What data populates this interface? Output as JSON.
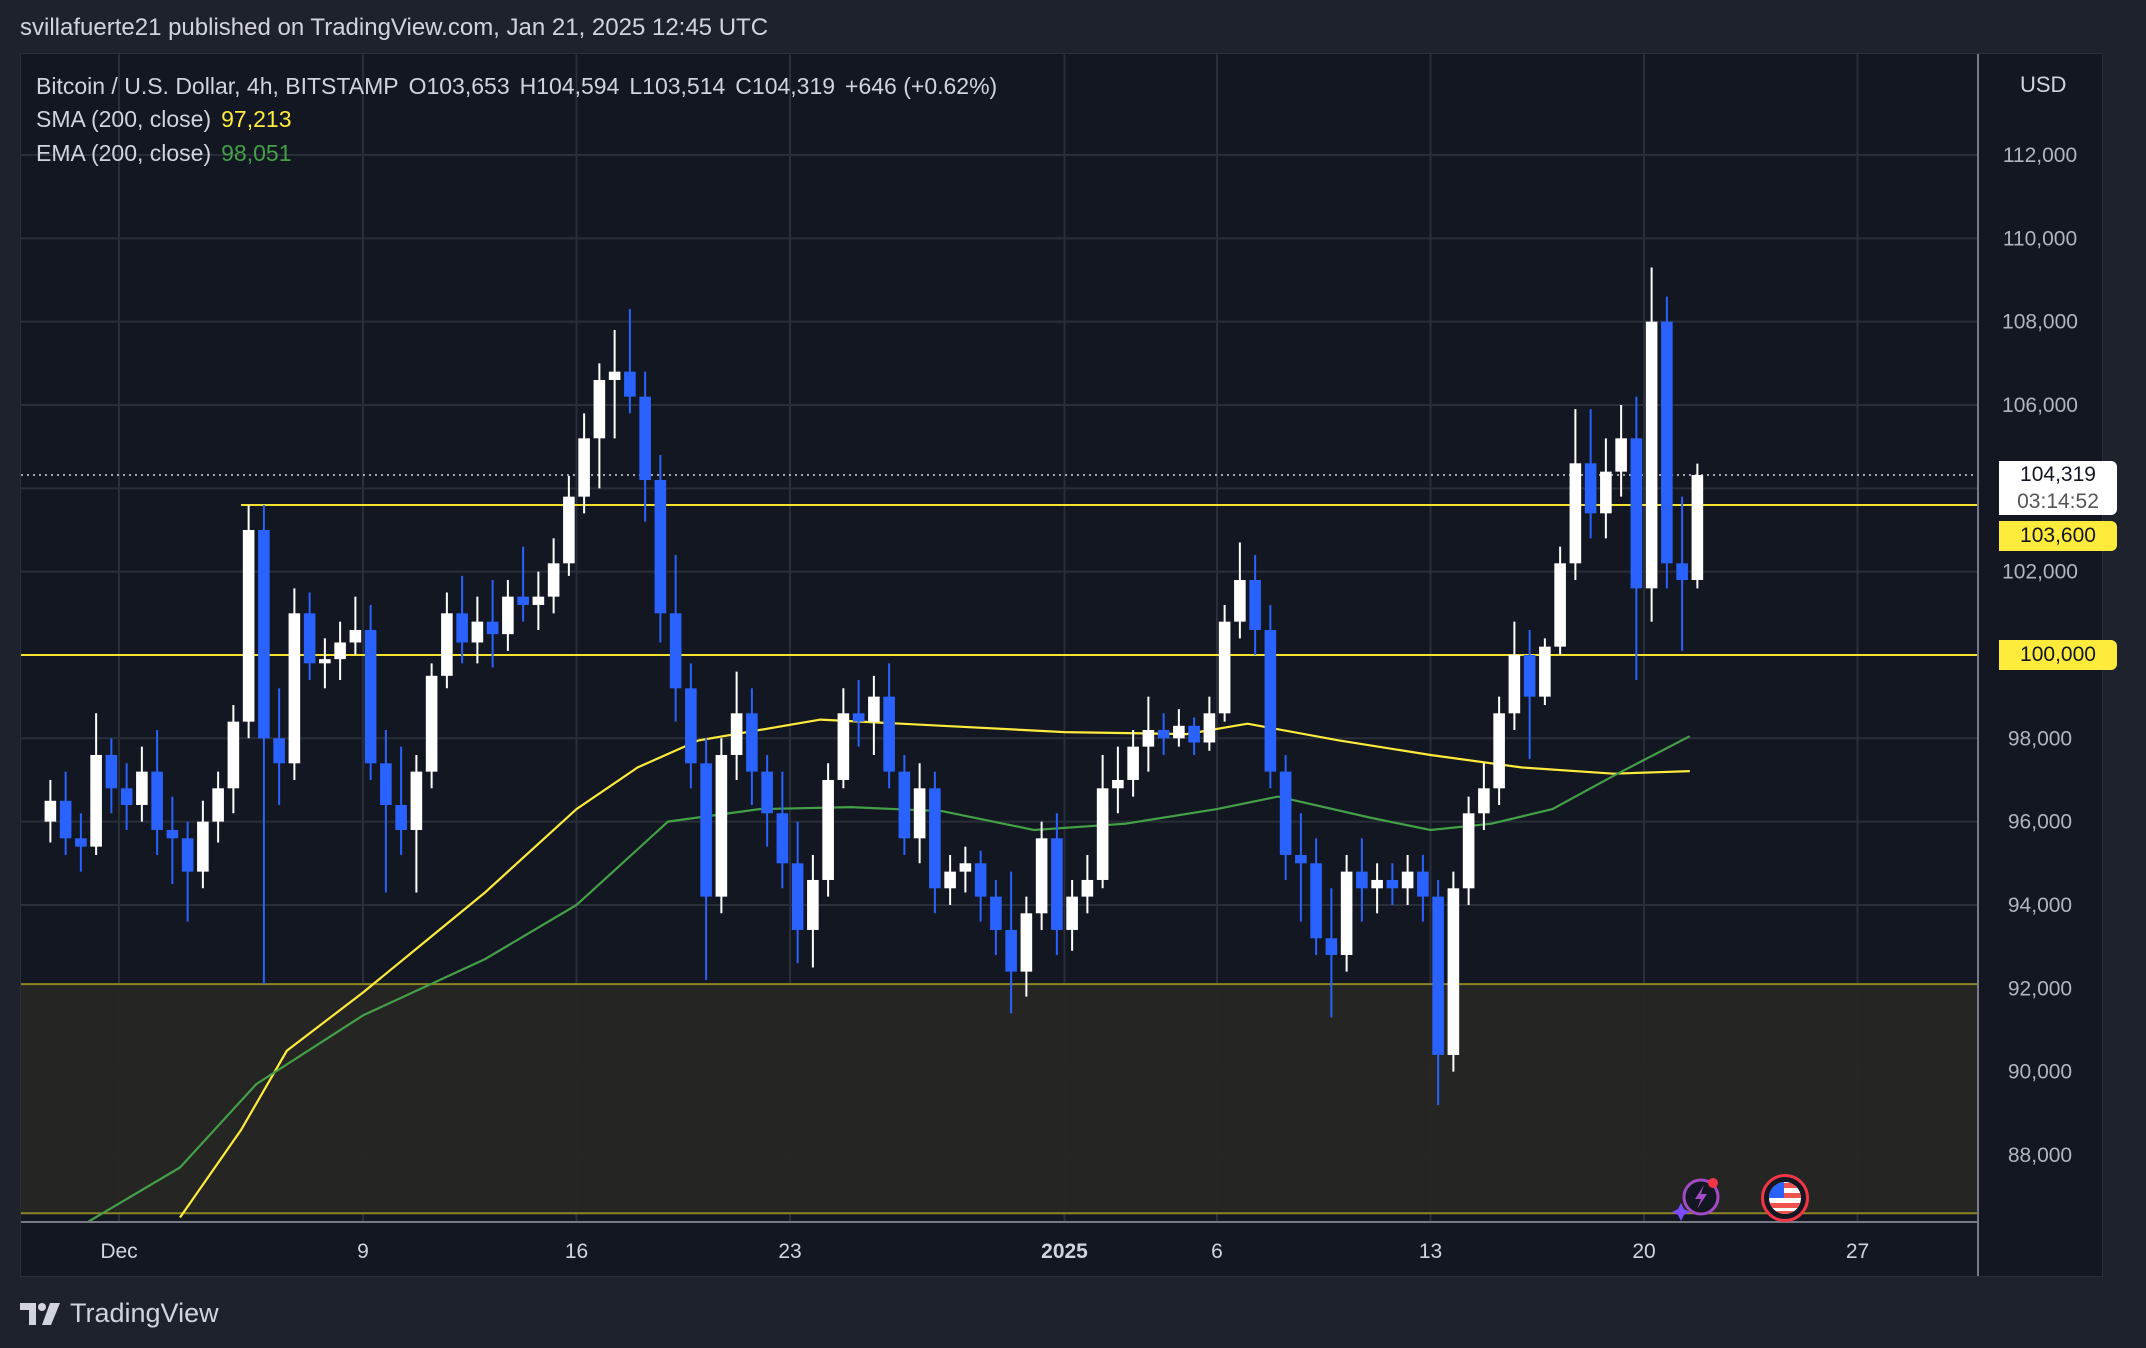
{
  "publish_line": "svillafuerte21 published on TradingView.com, Jan 21, 2025 12:45 UTC",
  "legend": {
    "symbol": "Bitcoin / U.S. Dollar, 4h, BITSTAMP",
    "open": "O103,653",
    "high": "H104,594",
    "low": "L103,514",
    "close": "C104,319",
    "change": "+646 (+0.62%)",
    "sma_label": "SMA (200, close)",
    "sma_value": "97,213",
    "ema_label": "EMA (200, close)",
    "ema_value": "98,051"
  },
  "price_axis": {
    "currency": "USD"
  },
  "tags": {
    "last_price": "104,319",
    "countdown": "03:14:52",
    "level_1": "103,600",
    "level_2": "100,000"
  },
  "footer": {
    "brand": "TradingView"
  },
  "colors": {
    "up": "#ffffff",
    "down": "#2962ff",
    "sma": "#ffeb3b",
    "ema": "#43a047",
    "level": "#f5e12e",
    "zone": "#262624",
    "background": "#131722"
  },
  "icons": [
    "ideas-lightning-icon",
    "us-flag-economic-event-icon"
  ],
  "chart_data": {
    "type": "candlestick",
    "title": "Bitcoin / U.S. Dollar, 4h, BITSTAMP",
    "ylim": [
      86600,
      114000
    ],
    "yticks": [
      88000,
      90000,
      92000,
      94000,
      96000,
      98000,
      100000,
      102000,
      104000,
      106000,
      108000,
      110000,
      112000
    ],
    "xticks": [
      {
        "label": "Dec",
        "date": "2024-12-01",
        "bold": false
      },
      {
        "label": "9",
        "date": "2024-12-09",
        "bold": false
      },
      {
        "label": "16",
        "date": "2024-12-16",
        "bold": false
      },
      {
        "label": "23",
        "date": "2024-12-23",
        "bold": false
      },
      {
        "label": "2025",
        "date": "2025-01-01",
        "bold": true
      },
      {
        "label": "6",
        "date": "2025-01-06",
        "bold": false
      },
      {
        "label": "13",
        "date": "2025-01-13",
        "bold": false
      },
      {
        "label": "20",
        "date": "2025-01-20",
        "bold": false
      },
      {
        "label": "27",
        "date": "2025-01-27",
        "bold": false
      }
    ],
    "grid": true,
    "horizontal_levels": [
      {
        "price": 103600,
        "from": "2024-12-05"
      },
      {
        "price": 100000
      },
      {
        "price": 92100
      },
      {
        "price": 86600
      }
    ],
    "zone": {
      "top": 92100,
      "bottom": 86600
    },
    "last_price": 104319,
    "candles_columns": [
      "time",
      "open",
      "high",
      "low",
      "close"
    ],
    "candles": [
      [
        "2024-11-28T12",
        96000,
        97000,
        95500,
        96500
      ],
      [
        "2024-11-29T00",
        96500,
        97200,
        95200,
        95600
      ],
      [
        "2024-11-29T12",
        95600,
        96200,
        94800,
        95400
      ],
      [
        "2024-11-30T00",
        95400,
        98600,
        95200,
        97600
      ],
      [
        "2024-11-30T12",
        97600,
        98000,
        96200,
        96800
      ],
      [
        "2024-12-01T00",
        96800,
        97400,
        95800,
        96400
      ],
      [
        "2024-12-01T12",
        96400,
        97800,
        96000,
        97200
      ],
      [
        "2024-12-02T00",
        97200,
        98200,
        95200,
        95800
      ],
      [
        "2024-12-02T12",
        95800,
        96600,
        94500,
        95600
      ],
      [
        "2024-12-03T00",
        95600,
        96000,
        93600,
        94800
      ],
      [
        "2024-12-03T12",
        94800,
        96500,
        94400,
        96000
      ],
      [
        "2024-12-04T00",
        96000,
        97200,
        95500,
        96800
      ],
      [
        "2024-12-04T12",
        96800,
        98800,
        96200,
        98400
      ],
      [
        "2024-12-05T00",
        98400,
        103600,
        98000,
        103000
      ],
      [
        "2024-12-05T12",
        103000,
        103600,
        92100,
        98000
      ],
      [
        "2024-12-06T00",
        98000,
        99200,
        96400,
        97400
      ],
      [
        "2024-12-06T12",
        97400,
        101600,
        97000,
        101000
      ],
      [
        "2024-12-07T00",
        101000,
        101500,
        99400,
        99800
      ],
      [
        "2024-12-07T12",
        99800,
        100400,
        99200,
        99900
      ],
      [
        "2024-12-08T00",
        99900,
        100800,
        99400,
        100300
      ],
      [
        "2024-12-08T12",
        100300,
        101400,
        100000,
        100600
      ],
      [
        "2024-12-09T00",
        100600,
        101200,
        97000,
        97400
      ],
      [
        "2024-12-09T12",
        97400,
        98200,
        94300,
        96400
      ],
      [
        "2024-12-10T00",
        96400,
        97800,
        95200,
        95800
      ],
      [
        "2024-12-10T12",
        95800,
        97600,
        94300,
        97200
      ],
      [
        "2024-12-11T00",
        97200,
        99800,
        96800,
        99500
      ],
      [
        "2024-12-11T12",
        99500,
        101500,
        99200,
        101000
      ],
      [
        "2024-12-12T00",
        101000,
        101900,
        99800,
        100300
      ],
      [
        "2024-12-12T12",
        100300,
        101400,
        99800,
        100800
      ],
      [
        "2024-12-13T00",
        100800,
        101800,
        99700,
        100500
      ],
      [
        "2024-12-13T12",
        100500,
        101800,
        100100,
        101400
      ],
      [
        "2024-12-14T00",
        101400,
        102600,
        100800,
        101200
      ],
      [
        "2024-12-14T12",
        101200,
        102000,
        100600,
        101400
      ],
      [
        "2024-12-15T00",
        101400,
        102800,
        101000,
        102200
      ],
      [
        "2024-12-15T12",
        102200,
        104300,
        101900,
        103800
      ],
      [
        "2024-12-16T00",
        103800,
        105800,
        103400,
        105200
      ],
      [
        "2024-12-16T12",
        105200,
        107000,
        104000,
        106600
      ],
      [
        "2024-12-17T00",
        106600,
        107800,
        105200,
        106800
      ],
      [
        "2024-12-17T12",
        106800,
        108300,
        105800,
        106200
      ],
      [
        "2024-12-18T00",
        106200,
        106800,
        103200,
        104200
      ],
      [
        "2024-12-18T12",
        104200,
        104800,
        100300,
        101000
      ],
      [
        "2024-12-19T00",
        101000,
        102400,
        98400,
        99200
      ],
      [
        "2024-12-19T12",
        99200,
        99800,
        96800,
        97400
      ],
      [
        "2024-12-20T00",
        97400,
        98000,
        92200,
        94200
      ],
      [
        "2024-12-20T12",
        94200,
        98000,
        93800,
        97600
      ],
      [
        "2024-12-21T00",
        97600,
        99600,
        97000,
        98600
      ],
      [
        "2024-12-21T12",
        98600,
        99200,
        96400,
        97200
      ],
      [
        "2024-12-22T00",
        97200,
        97600,
        95400,
        96200
      ],
      [
        "2024-12-22T12",
        96200,
        97200,
        94400,
        95000
      ],
      [
        "2024-12-23T00",
        95000,
        96000,
        92600,
        93400
      ],
      [
        "2024-12-23T12",
        93400,
        95200,
        92500,
        94600
      ],
      [
        "2024-12-24T00",
        94600,
        97400,
        94200,
        97000
      ],
      [
        "2024-12-24T12",
        97000,
        99200,
        96800,
        98600
      ],
      [
        "2024-12-25T00",
        98600,
        99400,
        97800,
        98400
      ],
      [
        "2024-12-25T12",
        98400,
        99500,
        97600,
        99000
      ],
      [
        "2024-12-26T00",
        99000,
        99800,
        96800,
        97200
      ],
      [
        "2024-12-26T12",
        97200,
        97600,
        95200,
        95600
      ],
      [
        "2024-12-27T00",
        95600,
        97400,
        95000,
        96800
      ],
      [
        "2024-12-27T12",
        96800,
        97200,
        93800,
        94400
      ],
      [
        "2024-12-28T00",
        94400,
        95200,
        94000,
        94800
      ],
      [
        "2024-12-28T12",
        94800,
        95400,
        94300,
        95000
      ],
      [
        "2024-12-29T00",
        95000,
        95300,
        93600,
        94200
      ],
      [
        "2024-12-29T12",
        94200,
        94600,
        92800,
        93400
      ],
      [
        "2024-12-30T00",
        93400,
        94800,
        91400,
        92400
      ],
      [
        "2024-12-30T12",
        92400,
        94200,
        91800,
        93800
      ],
      [
        "2024-12-31T00",
        93800,
        96000,
        93400,
        95600
      ],
      [
        "2024-12-31T12",
        95600,
        96200,
        92800,
        93400
      ],
      [
        "2025-01-01T00",
        93400,
        94600,
        92900,
        94200
      ],
      [
        "2025-01-01T12",
        94200,
        95200,
        93800,
        94600
      ],
      [
        "2025-01-02T00",
        94600,
        97600,
        94400,
        96800
      ],
      [
        "2025-01-02T12",
        96800,
        97800,
        96200,
        97000
      ],
      [
        "2025-01-03T00",
        97000,
        98200,
        96600,
        97800
      ],
      [
        "2025-01-03T12",
        97800,
        99000,
        97200,
        98200
      ],
      [
        "2025-01-04T00",
        98200,
        98600,
        97600,
        98000
      ],
      [
        "2025-01-04T12",
        98000,
        98700,
        97800,
        98300
      ],
      [
        "2025-01-05T00",
        98300,
        98500,
        97600,
        97900
      ],
      [
        "2025-01-05T12",
        97900,
        99000,
        97700,
        98600
      ],
      [
        "2025-01-06T00",
        98600,
        101200,
        98400,
        100800
      ],
      [
        "2025-01-06T12",
        100800,
        102700,
        100400,
        101800
      ],
      [
        "2025-01-07T00",
        101800,
        102400,
        100000,
        100600
      ],
      [
        "2025-01-07T12",
        100600,
        101200,
        96800,
        97200
      ],
      [
        "2025-01-08T00",
        97200,
        97600,
        94600,
        95200
      ],
      [
        "2025-01-08T12",
        95200,
        96200,
        93600,
        95000
      ],
      [
        "2025-01-09T00",
        95000,
        95600,
        92800,
        93200
      ],
      [
        "2025-01-09T12",
        93200,
        94400,
        91300,
        92800
      ],
      [
        "2025-01-10T00",
        92800,
        95200,
        92400,
        94800
      ],
      [
        "2025-01-10T12",
        94800,
        95600,
        93600,
        94400
      ],
      [
        "2025-01-11T00",
        94400,
        95000,
        93800,
        94600
      ],
      [
        "2025-01-11T12",
        94600,
        95000,
        94000,
        94400
      ],
      [
        "2025-01-12T00",
        94400,
        95200,
        94000,
        94800
      ],
      [
        "2025-01-12T12",
        94800,
        95200,
        93600,
        94200
      ],
      [
        "2025-01-13T00",
        94200,
        94600,
        89200,
        90400
      ],
      [
        "2025-01-13T12",
        90400,
        94800,
        90000,
        94400
      ],
      [
        "2025-01-14T00",
        94400,
        96600,
        94000,
        96200
      ],
      [
        "2025-01-14T12",
        96200,
        97400,
        95800,
        96800
      ],
      [
        "2025-01-15T00",
        96800,
        99000,
        96400,
        98600
      ],
      [
        "2025-01-15T12",
        98600,
        100800,
        98200,
        100000
      ],
      [
        "2025-01-16T00",
        100000,
        100600,
        97500,
        99000
      ],
      [
        "2025-01-16T12",
        99000,
        100400,
        98800,
        100200
      ],
      [
        "2025-01-17T00",
        100200,
        102600,
        100000,
        102200
      ],
      [
        "2025-01-17T12",
        102200,
        105900,
        101800,
        104600
      ],
      [
        "2025-01-18T00",
        104600,
        105900,
        102800,
        103400
      ],
      [
        "2025-01-18T12",
        103400,
        105200,
        102800,
        104400
      ],
      [
        "2025-01-19T00",
        104400,
        106000,
        103800,
        105200
      ],
      [
        "2025-01-19T12",
        105200,
        106200,
        99400,
        101600
      ],
      [
        "2025-01-20T00",
        101600,
        109300,
        100800,
        108000
      ],
      [
        "2025-01-20T12",
        108000,
        108600,
        101600,
        102200
      ],
      [
        "2025-01-21T00",
        102200,
        103800,
        100100,
        101800
      ],
      [
        "2025-01-21T12",
        101800,
        104594,
        101600,
        104319
      ]
    ],
    "series": [
      {
        "name": "SMA (200, close)",
        "color": "#ffeb3b",
        "points": [
          [
            "2024-12-03T00",
            86500
          ],
          [
            "2024-12-05T00",
            88600
          ],
          [
            "2024-12-06T12",
            90500
          ],
          [
            "2024-12-09T00",
            91900
          ],
          [
            "2024-12-11T00",
            93100
          ],
          [
            "2024-12-13T00",
            94300
          ],
          [
            "2024-12-16T00",
            96300
          ],
          [
            "2024-12-18T00",
            97300
          ],
          [
            "2024-12-20T00",
            97950
          ],
          [
            "2024-12-24T00",
            98450
          ],
          [
            "2024-12-28T00",
            98300
          ],
          [
            "2025-01-01T00",
            98150
          ],
          [
            "2025-01-05T00",
            98100
          ],
          [
            "2025-01-07T00",
            98350
          ],
          [
            "2025-01-10T00",
            97950
          ],
          [
            "2025-01-13T00",
            97600
          ],
          [
            "2025-01-16T00",
            97300
          ],
          [
            "2025-01-19T00",
            97150
          ],
          [
            "2025-01-21T12",
            97213
          ]
        ]
      },
      {
        "name": "EMA (200, close)",
        "color": "#43a047",
        "points": [
          [
            "2024-11-30T00",
            86400
          ],
          [
            "2024-12-03T00",
            87700
          ],
          [
            "2024-12-05T12",
            89700
          ],
          [
            "2024-12-09T00",
            91350
          ],
          [
            "2024-12-13T00",
            92700
          ],
          [
            "2024-12-16T00",
            94000
          ],
          [
            "2024-12-19T00",
            96000
          ],
          [
            "2024-12-22T00",
            96300
          ],
          [
            "2024-12-25T00",
            96350
          ],
          [
            "2024-12-28T00",
            96250
          ],
          [
            "2024-12-31T00",
            95800
          ],
          [
            "2025-01-03T00",
            95950
          ],
          [
            "2025-01-06T00",
            96300
          ],
          [
            "2025-01-08T00",
            96600
          ],
          [
            "2025-01-11T00",
            96100
          ],
          [
            "2025-01-13T00",
            95800
          ],
          [
            "2025-01-15T00",
            95950
          ],
          [
            "2025-01-17T00",
            96300
          ],
          [
            "2025-01-19T00",
            97100
          ],
          [
            "2025-01-21T12",
            98051
          ]
        ]
      }
    ]
  }
}
